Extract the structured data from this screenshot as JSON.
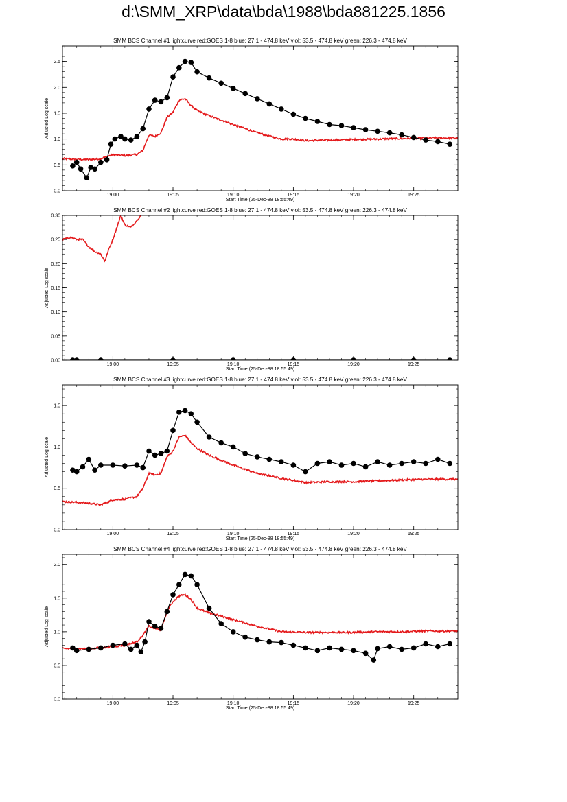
{
  "page": {
    "title": "d:\\SMM_XRP\\data\\bda\\1988\\bda881225.1856"
  },
  "colors": {
    "goes": "#e41a1c",
    "bcs": "#000000"
  },
  "chart_data": [
    {
      "type": "line",
      "title": "SMM BCS Channel #1 lightcurve  red:GOES 1-8  blue: 27.1 - 474.8 keV  viol: 53.5 - 474.8 keV  green: 226.3 - 474.8 keV",
      "xlabel": "Start Time (25-Dec-88 18:55:49)",
      "ylabel": "Adjusted Log scale",
      "xlim": [
        "18:55:49",
        "19:28:40"
      ],
      "ylim": [
        0,
        2.8
      ],
      "xticks": [
        "19:00",
        "19:05",
        "19:10",
        "19:15",
        "19:20",
        "19:25"
      ],
      "yticks": [
        "0.0",
        "0.5",
        "1.0",
        "1.5",
        "2.0",
        "2.5"
      ],
      "series": [
        {
          "color": "#e41a1c",
          "x": [
            "18:55:49",
            "18:58:00",
            "18:59:00",
            "19:00:00",
            "19:01:00",
            "19:02:00",
            "19:02:30",
            "19:03:00",
            "19:03:30",
            "19:04:00",
            "19:04:30",
            "19:05:00",
            "19:05:30",
            "19:06:00",
            "19:06:30",
            "19:07:00",
            "19:08:00",
            "19:10:00",
            "19:12:00",
            "19:14:00",
            "19:15:00",
            "19:16:00",
            "19:18:00",
            "19:20:00",
            "19:22:00",
            "19:24:00",
            "19:26:00",
            "19:28:40"
          ],
          "y": [
            0.62,
            0.6,
            0.62,
            0.7,
            0.68,
            0.7,
            0.78,
            1.08,
            1.05,
            1.12,
            1.42,
            1.52,
            1.75,
            1.78,
            1.65,
            1.55,
            1.45,
            1.28,
            1.12,
            1.0,
            1.0,
            0.97,
            0.98,
            0.99,
            1.0,
            1.01,
            1.02,
            1.02
          ]
        },
        {
          "color": "#000000",
          "x": [
            "18:56:40",
            "18:57:00",
            "18:57:20",
            "18:57:50",
            "18:58:10",
            "18:58:30",
            "18:59:00",
            "18:59:30",
            "18:59:50",
            "19:00:10",
            "19:00:40",
            "19:01:00",
            "19:01:30",
            "19:02:00",
            "19:02:30",
            "19:03:00",
            "19:03:30",
            "19:04:00",
            "19:04:30",
            "19:05:00",
            "19:05:30",
            "19:06:00",
            "19:06:30",
            "19:07:00",
            "19:08:00",
            "19:09:00",
            "19:10:00",
            "19:11:00",
            "19:12:00",
            "19:13:00",
            "19:14:00",
            "19:15:00",
            "19:16:00",
            "19:17:00",
            "19:18:00",
            "19:19:00",
            "19:20:00",
            "19:21:00",
            "19:22:00",
            "19:23:00",
            "19:24:00",
            "19:25:00",
            "19:26:00",
            "19:27:00",
            "19:28:00"
          ],
          "y": [
            0.48,
            0.55,
            0.42,
            0.25,
            0.45,
            0.42,
            0.55,
            0.6,
            0.9,
            1.0,
            1.05,
            1.0,
            0.98,
            1.05,
            1.2,
            1.58,
            1.75,
            1.72,
            1.8,
            2.2,
            2.38,
            2.5,
            2.48,
            2.3,
            2.18,
            2.08,
            1.98,
            1.88,
            1.78,
            1.68,
            1.58,
            1.48,
            1.4,
            1.34,
            1.28,
            1.26,
            1.22,
            1.18,
            1.15,
            1.12,
            1.08,
            1.03,
            0.98,
            0.95,
            0.9
          ]
        }
      ]
    },
    {
      "type": "line",
      "title": "SMM BCS Channel #2 lightcurve  red:GOES 1-8  blue: 27.1 - 474.8 keV  viol: 53.5 - 474.8 keV  green: 226.3 - 474.8 keV",
      "xlabel": "Start Time (25-Dec-88 18:55:49)",
      "ylabel": "Adjusted Log scale",
      "xlim": [
        "18:55:49",
        "19:28:40"
      ],
      "ylim": [
        0,
        0.3
      ],
      "xticks": [
        "19:00",
        "19:05",
        "19:10",
        "19:15",
        "19:20",
        "19:25"
      ],
      "yticks": [
        "0.00",
        "0.05",
        "0.10",
        "0.15",
        "0.20",
        "0.25",
        "0.30"
      ],
      "series": [
        {
          "color": "#e41a1c",
          "x": [
            "18:55:49",
            "18:56:30",
            "18:57:00",
            "18:57:30",
            "18:58:00",
            "18:58:30",
            "18:59:00",
            "18:59:20",
            "18:59:40",
            "19:00:00",
            "19:00:20",
            "19:00:40",
            "19:01:00",
            "19:01:30",
            "19:02:00",
            "19:02:20"
          ],
          "y": [
            0.25,
            0.255,
            0.25,
            0.25,
            0.235,
            0.225,
            0.22,
            0.205,
            0.23,
            0.25,
            0.275,
            0.3,
            0.28,
            0.275,
            0.29,
            0.3
          ]
        },
        {
          "color": "#000000",
          "x": [
            "18:56:40",
            "18:57:00",
            "18:59:00",
            "19:05:00",
            "19:10:00",
            "19:15:00",
            "19:20:00",
            "19:25:00",
            "19:28:00"
          ],
          "y": [
            0,
            0,
            0,
            0,
            0,
            0,
            0,
            0,
            0
          ]
        }
      ]
    },
    {
      "type": "line",
      "title": "SMM BCS Channel #3 lightcurve  red:GOES 1-8  blue: 27.1 - 474.8 keV  viol: 53.5 - 474.8 keV  green: 226.3 - 474.8 keV",
      "xlabel": "Start Time (25-Dec-88 18:55:49)",
      "ylabel": "Adjusted Log scale",
      "xlim": [
        "18:55:49",
        "19:28:40"
      ],
      "ylim": [
        0,
        1.75
      ],
      "xticks": [
        "19:00",
        "19:05",
        "19:10",
        "19:15",
        "19:20",
        "19:25"
      ],
      "yticks": [
        "0.0",
        "0.5",
        "1.0",
        "1.5"
      ],
      "series": [
        {
          "color": "#e41a1c",
          "x": [
            "18:55:49",
            "18:58:00",
            "18:59:00",
            "19:00:00",
            "19:01:00",
            "19:02:00",
            "19:02:30",
            "19:03:00",
            "19:03:30",
            "19:04:00",
            "19:04:30",
            "19:05:00",
            "19:05:30",
            "19:06:00",
            "19:06:30",
            "19:07:00",
            "19:08:00",
            "19:10:00",
            "19:12:00",
            "19:14:00",
            "19:16:00",
            "19:18:00",
            "19:20:00",
            "19:22:00",
            "19:24:00",
            "19:26:00",
            "19:28:40"
          ],
          "y": [
            0.34,
            0.32,
            0.3,
            0.36,
            0.37,
            0.4,
            0.5,
            0.68,
            0.66,
            0.68,
            0.88,
            0.95,
            1.12,
            1.14,
            1.05,
            0.98,
            0.9,
            0.78,
            0.68,
            0.62,
            0.57,
            0.58,
            0.58,
            0.59,
            0.6,
            0.61,
            0.61
          ]
        },
        {
          "color": "#000000",
          "x": [
            "18:56:40",
            "18:57:00",
            "18:57:30",
            "18:58:00",
            "18:58:30",
            "18:59:00",
            "19:00:00",
            "19:01:00",
            "19:02:00",
            "19:02:30",
            "19:03:00",
            "19:03:30",
            "19:04:00",
            "19:04:30",
            "19:05:00",
            "19:05:30",
            "19:06:00",
            "19:06:30",
            "19:07:00",
            "19:08:00",
            "19:09:00",
            "19:10:00",
            "19:11:00",
            "19:12:00",
            "19:13:00",
            "19:14:00",
            "19:15:00",
            "19:16:00",
            "19:17:00",
            "19:18:00",
            "19:19:00",
            "19:20:00",
            "19:21:00",
            "19:22:00",
            "19:23:00",
            "19:24:00",
            "19:25:00",
            "19:26:00",
            "19:27:00",
            "19:28:00"
          ],
          "y": [
            0.72,
            0.7,
            0.76,
            0.85,
            0.72,
            0.78,
            0.78,
            0.77,
            0.78,
            0.75,
            0.95,
            0.9,
            0.92,
            0.95,
            1.2,
            1.42,
            1.44,
            1.4,
            1.3,
            1.12,
            1.05,
            1.0,
            0.92,
            0.88,
            0.85,
            0.82,
            0.78,
            0.7,
            0.8,
            0.82,
            0.78,
            0.8,
            0.76,
            0.82,
            0.78,
            0.8,
            0.82,
            0.8,
            0.85,
            0.8
          ]
        }
      ]
    },
    {
      "type": "line",
      "title": "SMM BCS Channel #4 lightcurve  red:GOES 1-8  blue: 27.1 - 474.8 keV  viol: 53.5 - 474.8 keV  green: 226.3 - 474.8 keV",
      "xlabel": "Start Time (25-Dec-88 18:55:49)",
      "ylabel": "Adjusted Log scale",
      "xlim": [
        "18:55:49",
        "19:28:40"
      ],
      "ylim": [
        0,
        2.15
      ],
      "xticks": [
        "19:00",
        "19:05",
        "19:10",
        "19:15",
        "19:20",
        "19:25"
      ],
      "yticks": [
        "0.0",
        "0.5",
        "1.0",
        "1.5",
        "2.0"
      ],
      "series": [
        {
          "color": "#e41a1c",
          "x": [
            "18:55:49",
            "18:58:00",
            "18:59:00",
            "19:00:00",
            "19:01:00",
            "19:02:00",
            "19:02:30",
            "19:03:00",
            "19:03:30",
            "19:04:00",
            "19:04:30",
            "19:05:00",
            "19:05:30",
            "19:06:00",
            "19:06:30",
            "19:07:00",
            "19:08:00",
            "19:10:00",
            "19:12:00",
            "19:14:00",
            "19:16:00",
            "19:18:00",
            "19:20:00",
            "19:22:00",
            "19:24:00",
            "19:26:00",
            "19:28:40"
          ],
          "y": [
            0.75,
            0.75,
            0.76,
            0.78,
            0.8,
            0.85,
            0.95,
            1.08,
            1.05,
            1.02,
            1.3,
            1.45,
            1.53,
            1.55,
            1.48,
            1.35,
            1.28,
            1.18,
            1.08,
            1.0,
            0.99,
            0.99,
            0.99,
            1.0,
            1.0,
            1.01,
            1.01
          ]
        },
        {
          "color": "#000000",
          "x": [
            "18:56:40",
            "18:57:00",
            "18:58:00",
            "18:59:00",
            "19:00:00",
            "19:01:00",
            "19:01:30",
            "19:02:00",
            "19:02:20",
            "19:02:40",
            "19:03:00",
            "19:03:30",
            "19:04:00",
            "19:04:30",
            "19:05:00",
            "19:05:30",
            "19:06:00",
            "19:06:30",
            "19:07:00",
            "19:08:00",
            "19:09:00",
            "19:10:00",
            "19:11:00",
            "19:12:00",
            "19:13:00",
            "19:14:00",
            "19:15:00",
            "19:16:00",
            "19:17:00",
            "19:18:00",
            "19:19:00",
            "19:20:00",
            "19:21:00",
            "19:21:40",
            "19:22:00",
            "19:23:00",
            "19:24:00",
            "19:25:00",
            "19:26:00",
            "19:27:00",
            "19:28:00"
          ],
          "y": [
            0.76,
            0.72,
            0.74,
            0.76,
            0.8,
            0.82,
            0.74,
            0.8,
            0.7,
            0.85,
            1.15,
            1.08,
            1.05,
            1.3,
            1.55,
            1.7,
            1.85,
            1.83,
            1.7,
            1.35,
            1.12,
            1.0,
            0.92,
            0.88,
            0.85,
            0.84,
            0.8,
            0.76,
            0.72,
            0.76,
            0.74,
            0.72,
            0.68,
            0.58,
            0.75,
            0.78,
            0.74,
            0.76,
            0.82,
            0.78,
            0.82
          ]
        }
      ]
    }
  ]
}
